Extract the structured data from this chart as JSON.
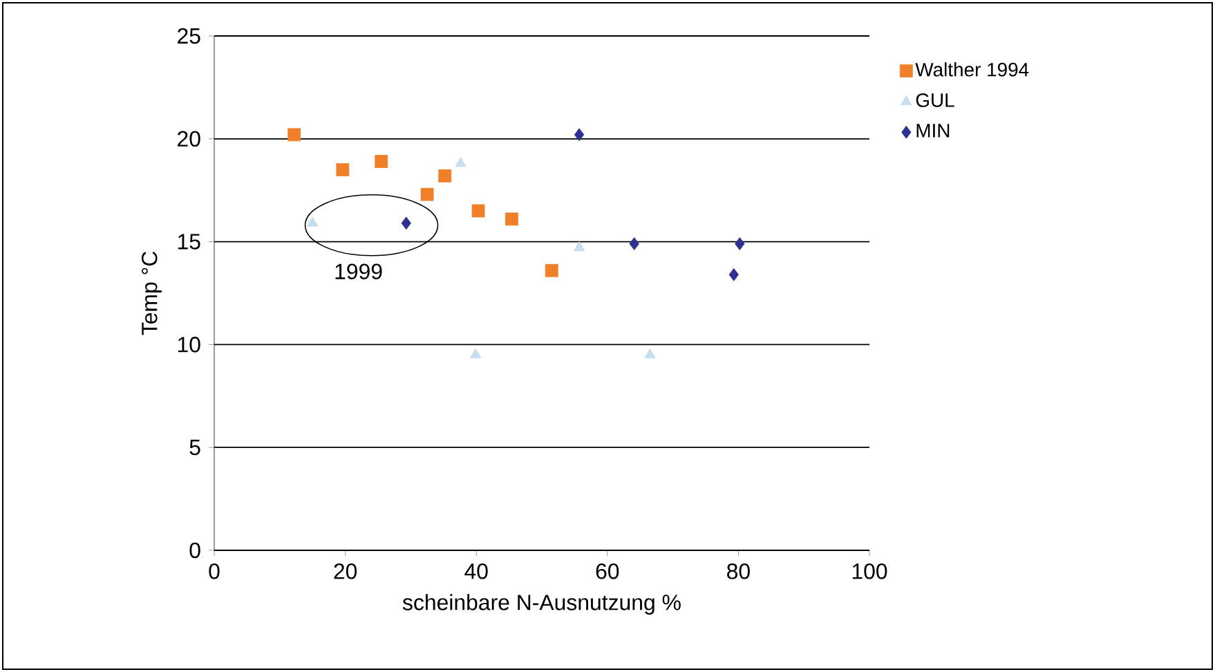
{
  "chart_data": {
    "type": "scatter",
    "xlabel": "scheinbare N-Ausnutzung %",
    "ylabel": "Temp °C",
    "xlim": [
      0,
      100
    ],
    "xticks": [
      0,
      20,
      40,
      60,
      80,
      100
    ],
    "ylim": [
      0,
      25
    ],
    "yticks": [
      0,
      5,
      10,
      15,
      20,
      25
    ],
    "grid": "y",
    "legend": "right",
    "annotations": [
      "1999"
    ],
    "series": [
      {
        "name": "Walther 1994",
        "color": "#f07f2a",
        "marker": "square",
        "x": [
          12.2,
          19.6,
          25.5,
          32.5,
          35.2,
          40.3,
          45.4,
          51.5
        ],
        "values": [
          20.2,
          18.5,
          18.9,
          17.3,
          18.2,
          16.5,
          16.1,
          13.6
        ]
      },
      {
        "name": "GUL",
        "color": "#c5def0",
        "marker": "triangle",
        "x": [
          15,
          37.6,
          39.9,
          55.7,
          66.5
        ],
        "values": [
          15.9,
          18.8,
          9.5,
          14.7,
          9.5
        ]
      },
      {
        "name": "MIN",
        "color": "#2e3192",
        "marker": "diamond",
        "x": [
          29.3,
          55.7,
          64.1,
          80.2,
          79.3
        ],
        "values": [
          15.9,
          20.2,
          14.9,
          14.9,
          13.4
        ]
      }
    ]
  }
}
